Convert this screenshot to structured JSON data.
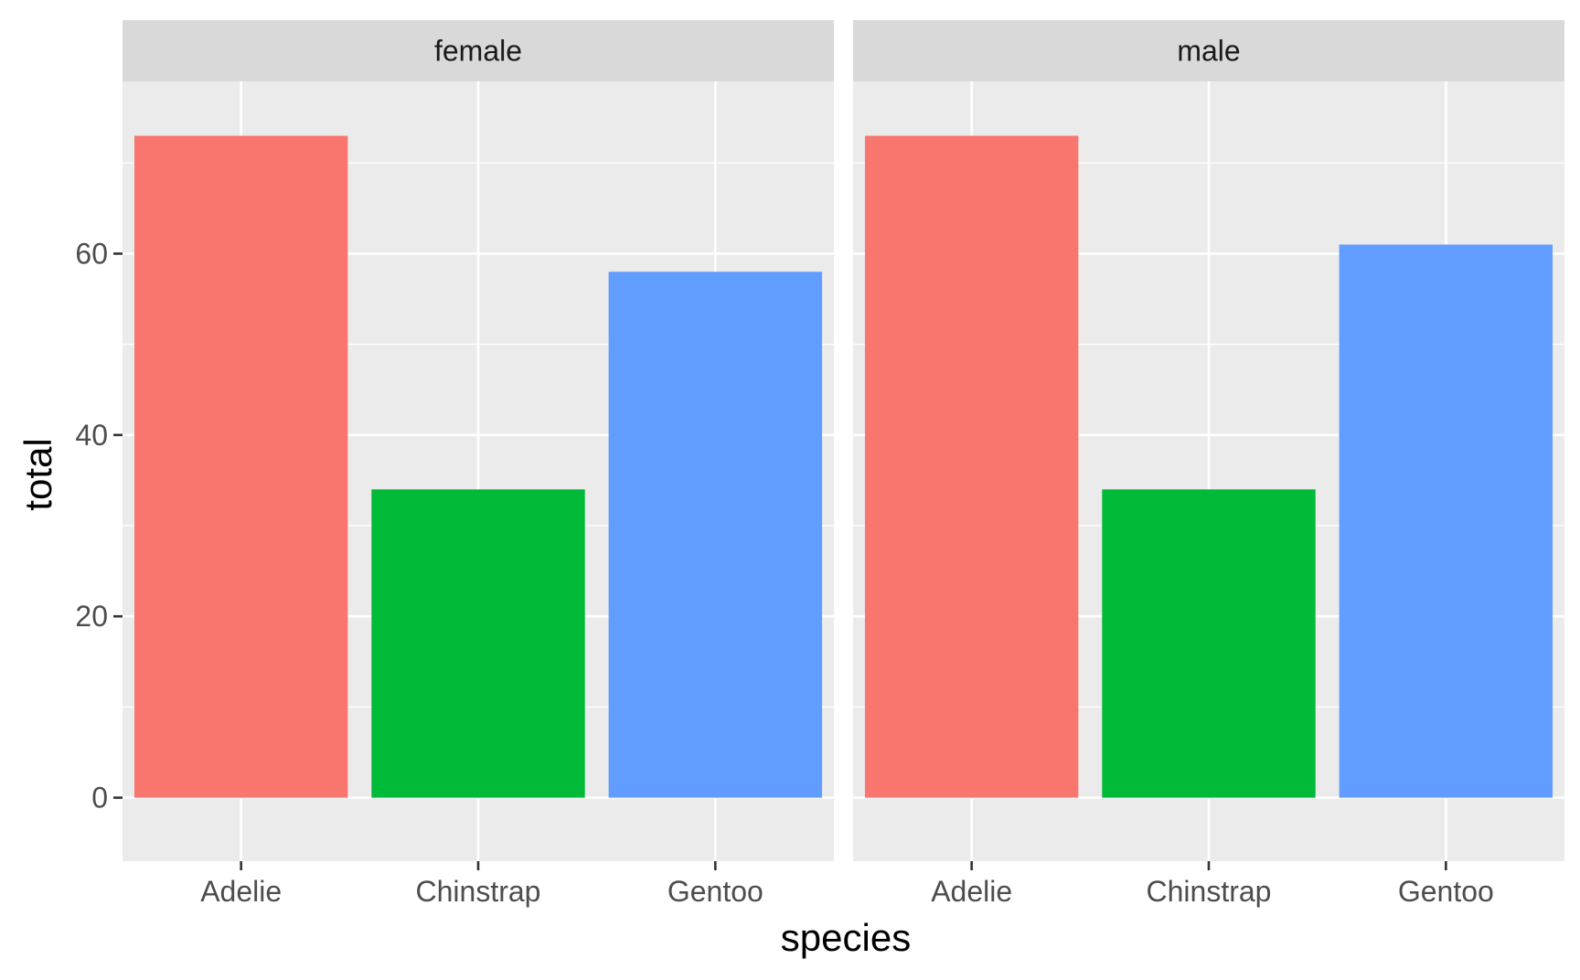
{
  "chart_data": {
    "type": "bar",
    "facet_by": "sex",
    "xlabel": "species",
    "ylabel": "total",
    "categories": [
      "Adelie",
      "Chinstrap",
      "Gentoo"
    ],
    "ylim": [
      -7,
      79
    ],
    "yticks": [
      0,
      20,
      40,
      60
    ],
    "grid": true,
    "legend": "none",
    "colors": {
      "Adelie": "#F8766D",
      "Chinstrap": "#00BA38",
      "Gentoo": "#619CFF",
      "panel_background": "#EBEBEB",
      "strip_background": "#D9D9D9",
      "grid": "#FFFFFF"
    },
    "panels": [
      {
        "facet": "female",
        "values": [
          73,
          34,
          58
        ]
      },
      {
        "facet": "male",
        "values": [
          73,
          34,
          61
        ]
      }
    ]
  }
}
